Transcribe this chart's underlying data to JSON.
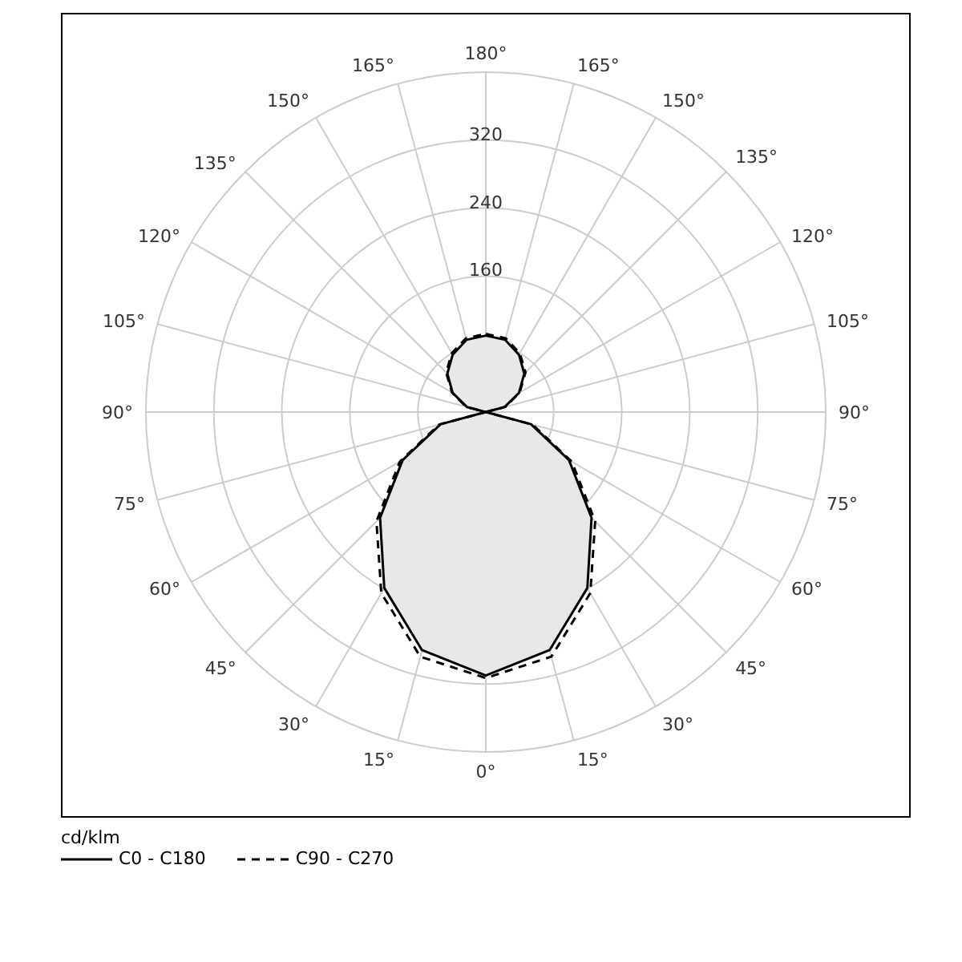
{
  "chart_data": {
    "type": "radar",
    "legend_title": "cd/klm",
    "categories": [
      "180°",
      "165°",
      "150°",
      "135°",
      "120°",
      "105°",
      "90°",
      "75°",
      "60°",
      "45°",
      "30°",
      "15°",
      "0°",
      "15°",
      "30°",
      "45°",
      "60°",
      "75°",
      "90°",
      "105°",
      "120°",
      "135°",
      "150°",
      "165°"
    ],
    "series": [
      {
        "name": "C0 - C180",
        "color": "#000000",
        "line_style": "solid",
        "values": [
          90,
          88,
          78,
          64,
          45,
          23,
          0,
          55,
          113,
          176,
          239,
          290,
          310,
          290,
          239,
          176,
          113,
          55,
          0,
          23,
          45,
          64,
          78,
          88
        ]
      },
      {
        "name": "C90 - C270",
        "color": "#000000",
        "line_style": "dashed",
        "values": [
          92,
          90,
          80,
          66,
          46,
          24,
          0,
          57,
          117,
          182,
          246,
          298,
          313,
          298,
          246,
          182,
          117,
          57,
          0,
          24,
          46,
          66,
          80,
          90
        ]
      }
    ],
    "ylim": [
      0,
      400
    ],
    "yticks": [
      160,
      240,
      320
    ],
    "grid": true,
    "legend": "bottom left"
  }
}
